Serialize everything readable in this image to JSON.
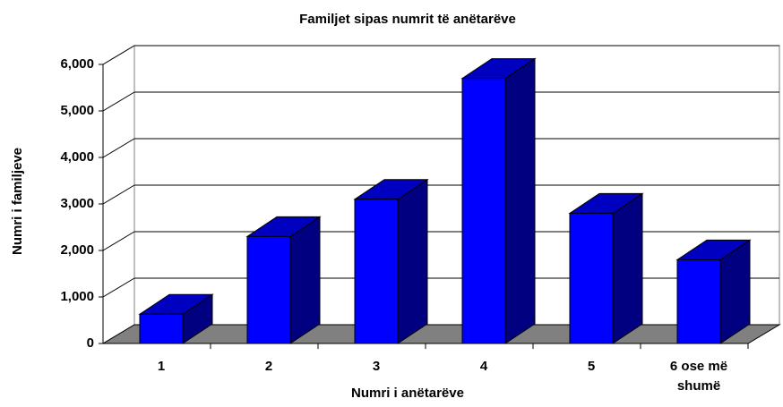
{
  "chart_data": {
    "type": "bar3d",
    "title": "Familjet sipas numrit të anëtarëve",
    "x_label": "Numri i anëtarëve",
    "y_label": "Numri i familjeve",
    "categories": [
      "1",
      "2",
      "3",
      "4",
      "5",
      "6 ose më shumë"
    ],
    "values": [
      630,
      2300,
      3100,
      5700,
      2800,
      1800
    ],
    "color": "#0000ff",
    "ylim": [
      0,
      6000
    ],
    "yticks": [
      0,
      {
        "value": 1000,
        "label": "1,000"
      },
      {
        "value": 2000,
        "label": "2,000"
      },
      {
        "value": 3000,
        "label": "3,000"
      },
      {
        "value": 4000,
        "label": "4,000"
      },
      {
        "value": 5000,
        "label": "5,000"
      },
      {
        "value": 6000,
        "label": "6,000"
      }
    ],
    "grid": true
  }
}
